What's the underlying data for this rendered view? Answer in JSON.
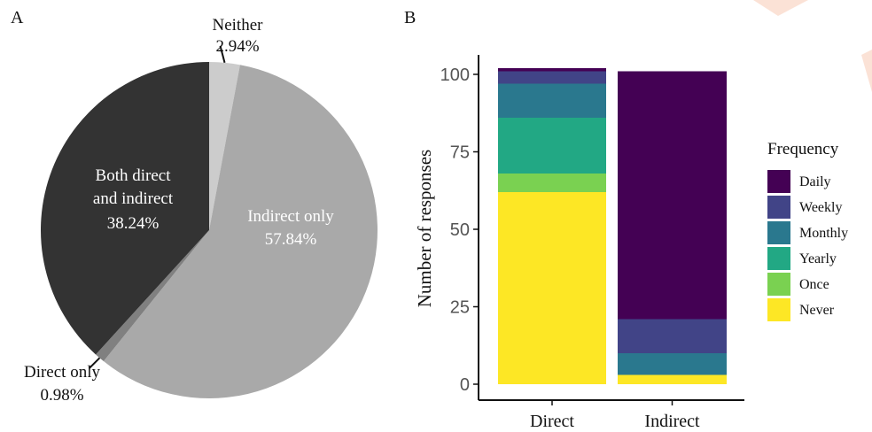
{
  "colors": {
    "pie": [
      "#cccccc",
      "#a9a9a9",
      "#808080",
      "#333333"
    ],
    "frequency": {
      "Daily": "#440154",
      "Weekly": "#414487",
      "Monthly": "#2a788e",
      "Yearly": "#22a884",
      "Once": "#7ad151",
      "Never": "#fde725"
    }
  },
  "chart_data": [
    {
      "type": "pie",
      "panel_label": "A",
      "slices": [
        {
          "label": "Neither",
          "value": 2.94,
          "value_label": "2.94%"
        },
        {
          "label": "Indirect only",
          "value": 57.84,
          "value_label": "57.84%"
        },
        {
          "label": "Direct only",
          "value": 0.98,
          "value_label": "0.98%"
        },
        {
          "label": "Both direct and indirect",
          "label_lines": [
            "Both direct",
            "and indirect"
          ],
          "value": 38.24,
          "value_label": "38.24%"
        }
      ]
    },
    {
      "type": "bar",
      "stacked": true,
      "panel_label": "B",
      "categories": [
        "Direct",
        "Indirect"
      ],
      "ylabel": "Number of responses",
      "ylim": [
        0,
        100
      ],
      "yticks": [
        0,
        25,
        50,
        75,
        100
      ],
      "legend_title": "Frequency",
      "legend_position": "right",
      "series": [
        {
          "name": "Never",
          "values": [
            62,
            3
          ]
        },
        {
          "name": "Once",
          "values": [
            6,
            0
          ]
        },
        {
          "name": "Yearly",
          "values": [
            18,
            0
          ]
        },
        {
          "name": "Monthly",
          "values": [
            11,
            7
          ]
        },
        {
          "name": "Weekly",
          "values": [
            4,
            11
          ]
        },
        {
          "name": "Daily",
          "values": [
            1,
            80
          ]
        }
      ],
      "legend_order": [
        "Daily",
        "Weekly",
        "Monthly",
        "Yearly",
        "Once",
        "Never"
      ]
    }
  ]
}
